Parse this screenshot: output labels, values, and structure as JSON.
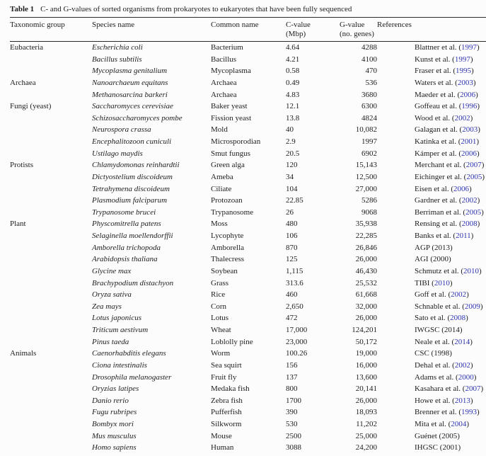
{
  "caption": {
    "label": "Table 1",
    "text": "C- and G-values of sorted organisms from prokaryotes to eukaryotes that have been fully sequenced"
  },
  "colors": {
    "reference_link": "#2e34b0",
    "text": "#1d1d1d",
    "rule": "#2a2a2a",
    "background": "#fcfcfc"
  },
  "table": {
    "headers": [
      {
        "id": "taxonomic-group",
        "label": "Taxonomic group",
        "sub": ""
      },
      {
        "id": "species-name",
        "label": "Species name",
        "sub": ""
      },
      {
        "id": "common-name",
        "label": "Common name",
        "sub": ""
      },
      {
        "id": "c-value",
        "label": "C-value",
        "sub": "(Mbp)"
      },
      {
        "id": "g-value",
        "label": "G-value",
        "sub": "(no. genes)"
      },
      {
        "id": "references",
        "label": "References",
        "sub": ""
      }
    ],
    "rows": [
      {
        "group": "Eubacteria",
        "species": "Escherichia coli",
        "common": "Bacterium",
        "c": "4.64",
        "g": "4288",
        "ref": "Blattner et al.",
        "year": "1997",
        "link": true
      },
      {
        "group": "",
        "species": "Bacillus subtilis",
        "common": "Bacillus",
        "c": "4.21",
        "g": "4100",
        "ref": "Kunst et al.",
        "year": "1997",
        "link": true
      },
      {
        "group": "",
        "species": "Mycoplasma genitalium",
        "common": "Mycoplasma",
        "c": "0.58",
        "g": "470",
        "ref": "Fraser et al.",
        "year": "1995",
        "link": true
      },
      {
        "group": "Archaea",
        "species": "Nanoarchaeum equitans",
        "common": "Archaea",
        "c": "0.49",
        "g": "536",
        "ref": "Waters et al.",
        "year": "2003",
        "link": true
      },
      {
        "group": "",
        "species": "Methanosarcina barkeri",
        "common": "Archaea",
        "c": "4.83",
        "g": "3680",
        "ref": "Maeder et al.",
        "year": "2006",
        "link": true
      },
      {
        "group": "Fungi (yeast)",
        "species": "Saccharomyces cerevisiae",
        "common": "Baker yeast",
        "c": "12.1",
        "g": "6300",
        "ref": "Goffeau et al.",
        "year": "1996",
        "link": true
      },
      {
        "group": "",
        "species": "Schizosaccharomyces pombe",
        "common": "Fission yeast",
        "c": "13.8",
        "g": "4824",
        "ref": "Wood et al.",
        "year": "2002",
        "link": true
      },
      {
        "group": "",
        "species": "Neurospora crassa",
        "common": "Mold",
        "c": "40",
        "g": "10,082",
        "ref": "Galagan et al.",
        "year": "2003",
        "link": true
      },
      {
        "group": "",
        "species": "Encephalitozoon cuniculi",
        "common": "Microsporodian",
        "c": "2.9",
        "g": "1997",
        "ref": "Katinka et al.",
        "year": "2001",
        "link": true
      },
      {
        "group": "",
        "species": "Ustilago maydis",
        "common": "Smut fungus",
        "c": "20.5",
        "g": "6902",
        "ref": "Kámper et al.",
        "year": "2006",
        "link": true
      },
      {
        "group": "Protists",
        "species": "Chlamydomonas reinhardtii",
        "common": "Green alga",
        "c": "120",
        "g": "15,143",
        "ref": "Merchant et al.",
        "year": "2007",
        "link": true
      },
      {
        "group": "",
        "species": "Dictyostelium discoideum",
        "common": "Ameba",
        "c": "34",
        "g": "12,500",
        "ref": "Eichinger et al.",
        "year": "2005",
        "link": true
      },
      {
        "group": "",
        "species": "Tetrahymena discoideum",
        "common": "Ciliate",
        "c": "104",
        "g": "27,000",
        "ref": "Eisen et al.",
        "year": "2006",
        "link": true
      },
      {
        "group": "",
        "species": "Plasmodium falciparum",
        "common": "Protozoan",
        "c": "22.85",
        "g": "5286",
        "ref": "Gardner et al.",
        "year": "2002",
        "link": true
      },
      {
        "group": "",
        "species": "Trypanosome brucei",
        "common": "Trypanosome",
        "c": "26",
        "g": "9068",
        "ref": "Berriman et al.",
        "year": "2005",
        "link": true
      },
      {
        "group": "Plant",
        "species": "Physcomitrella patens",
        "common": "Moss",
        "c": "480",
        "g": "35,938",
        "ref": "Rensing et al.",
        "year": "2008",
        "link": true
      },
      {
        "group": "",
        "species": "Selaginella moellendorffii",
        "common": "Lycophyte",
        "c": "106",
        "g": "22,285",
        "ref": "Banks et al.",
        "year": "2011",
        "link": true
      },
      {
        "group": "",
        "species": "Amborella trichopoda",
        "common": "Amborella",
        "c": "870",
        "g": "26,846",
        "ref": "AGP",
        "year": "2013",
        "link": false
      },
      {
        "group": "",
        "species": "Arabidopsis thaliana",
        "common": "Thalecress",
        "c": "125",
        "g": "26,000",
        "ref": "AGI",
        "year": "2000",
        "link": false
      },
      {
        "group": "",
        "species": "Glycine max",
        "common": "Soybean",
        "c": "1,115",
        "g": "46,430",
        "ref": "Schmutz et al.",
        "year": "2010",
        "link": true
      },
      {
        "group": "",
        "species": "Brachypodium distachyon",
        "common": "Grass",
        "c": "313.6",
        "g": "25,532",
        "ref": "TIBI",
        "year": "2010",
        "link": true
      },
      {
        "group": "",
        "species": "Oryza sativa",
        "common": "Rice",
        "c": "460",
        "g": "61,668",
        "ref": "Goff et al.",
        "year": "2002",
        "link": true
      },
      {
        "group": "",
        "species": "Zea mays",
        "common": "Corn",
        "c": "2,650",
        "g": "32,000",
        "ref": "Schnable et al.",
        "year": "2009",
        "link": true
      },
      {
        "group": "",
        "species": "Lotus japonicus",
        "common": "Lotus",
        "c": "472",
        "g": "26,000",
        "ref": "Sato et al.",
        "year": "2008",
        "link": true
      },
      {
        "group": "",
        "species": "Triticum aestivum",
        "common": "Wheat",
        "c": "17,000",
        "g": "124,201",
        "ref": "IWGSC",
        "year": "2014",
        "link": false
      },
      {
        "group": "",
        "species": "Pinus taeda",
        "common": "Loblolly pine",
        "c": "23,000",
        "g": "50,172",
        "ref": "Neale et al.",
        "year": "2014",
        "link": true
      },
      {
        "group": "Animals",
        "species": "Caenorhabditis elegans",
        "common": "Worm",
        "c": "100.26",
        "g": "19,000",
        "ref": "CSC",
        "year": "1998",
        "link": false
      },
      {
        "group": "",
        "species": "Ciona intestinalis",
        "common": "Sea squirt",
        "c": "156",
        "g": "16,000",
        "ref": "Dehal et al.",
        "year": "2002",
        "link": true
      },
      {
        "group": "",
        "species": "Drosophila melanogaster",
        "common": "Fruit fly",
        "c": "137",
        "g": "13,600",
        "ref": "Adams et al.",
        "year": "2000",
        "link": true
      },
      {
        "group": "",
        "species": "Oryzias latipes",
        "common": "Medaka fish",
        "c": "800",
        "g": "20,141",
        "ref": "Kasahara et al.",
        "year": "2007",
        "link": true
      },
      {
        "group": "",
        "species": "Danio rerio",
        "common": "Zebra fish",
        "c": "1700",
        "g": "26,000",
        "ref": "Howe et al.",
        "year": "2013",
        "link": true
      },
      {
        "group": "",
        "species": "Fugu rubripes",
        "common": "Pufferfish",
        "c": "390",
        "g": "18,093",
        "ref": "Brenner et al.",
        "year": "1993",
        "link": true
      },
      {
        "group": "",
        "species": "Bombyx mori",
        "common": "Silkworm",
        "c": "530",
        "g": "11,202",
        "ref": "Mita et al.",
        "year": "2004",
        "link": true
      },
      {
        "group": "",
        "species": "Mus musculus",
        "common": "Mouse",
        "c": "2500",
        "g": "25,000",
        "ref": "Guénet",
        "year": "2005",
        "link": false
      },
      {
        "group": "",
        "species": "Homo sapiens",
        "common": "Human",
        "c": "3088",
        "g": "24,200",
        "ref": "IHGSC",
        "year": "2001",
        "link": false
      }
    ]
  }
}
